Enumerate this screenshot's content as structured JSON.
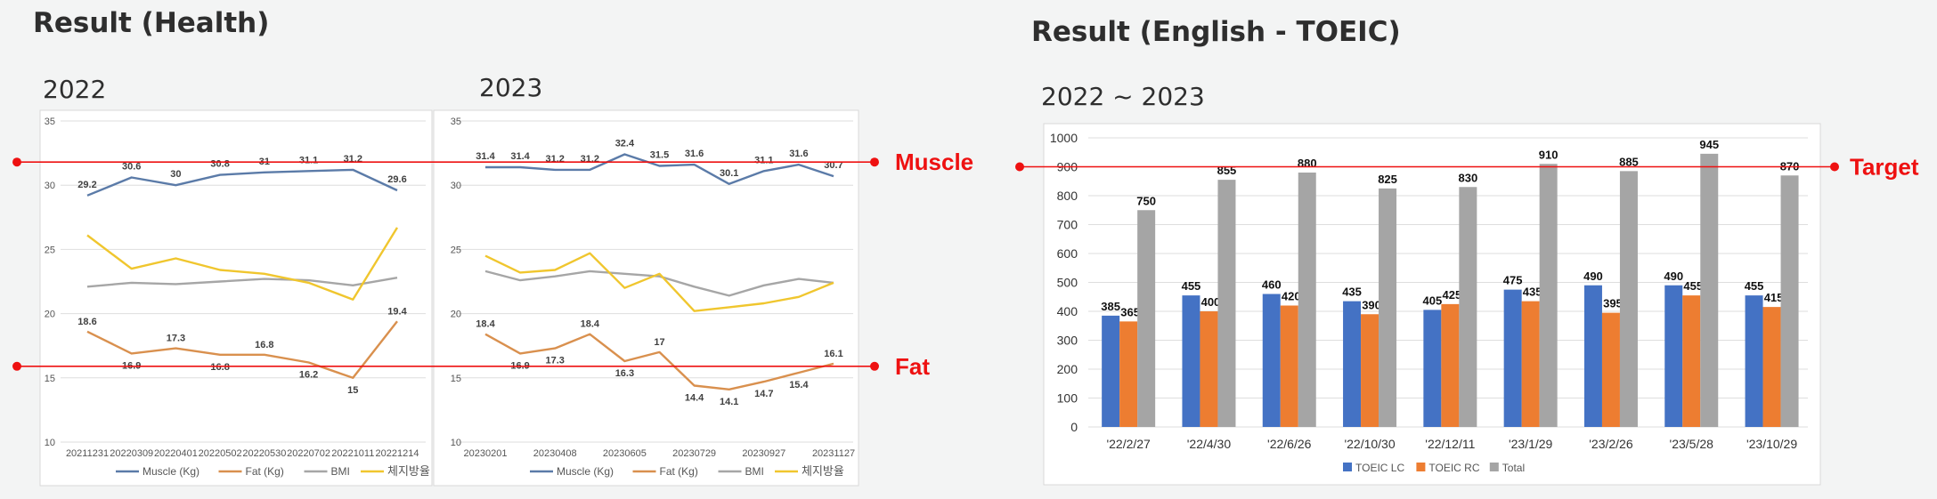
{
  "titles": {
    "health": "Result (Health)",
    "english": "Result (English - TOEIC)",
    "health_2022": "2022",
    "health_2023": "2023",
    "english_range": "2022 ~ 2023"
  },
  "reference_lines": {
    "muscle": "Muscle",
    "fat": "Fat",
    "target": "Target"
  },
  "colors": {
    "muscle": "#5b7ba8",
    "fat": "#d9904e",
    "bmi": "#a6a6a6",
    "body_fat": "#f0c62e",
    "toeic_lc": "#4472c4",
    "toeic_rc": "#ed7d31",
    "total": "#a5a5a5",
    "target_line": "#ee1111"
  },
  "chart_data": [
    {
      "type": "line",
      "title": "2022",
      "ylim": [
        10,
        35
      ],
      "yticks": [
        "10",
        "15",
        "20",
        "25",
        "30",
        "35"
      ],
      "x": [
        "20211231",
        "20220309",
        "20220401",
        "20220502",
        "20220530",
        "20220702",
        "20221011",
        "20221214"
      ],
      "series": [
        {
          "name": "Muscle (Kg)",
          "values": [
            29.2,
            30.6,
            30.0,
            30.8,
            31.0,
            31.1,
            31.2,
            29.6
          ],
          "labels": [
            "29.2",
            "30.6",
            "30",
            "30.8",
            "31",
            "31.1",
            "31.2",
            "29.6"
          ]
        },
        {
          "name": "Fat (Kg)",
          "values": [
            18.6,
            16.9,
            17.3,
            16.8,
            16.8,
            16.2,
            15.0,
            19.4
          ],
          "labels": [
            "18.6",
            "16.9",
            "17.3",
            "16.8",
            "16.8",
            "16.2",
            "15",
            "19.4"
          ]
        },
        {
          "name": "BMI",
          "values": [
            22.1,
            22.4,
            22.3,
            22.5,
            22.7,
            22.6,
            22.2,
            22.8
          ],
          "labels": []
        },
        {
          "name": "체지방율",
          "values": [
            26.1,
            23.5,
            24.3,
            23.4,
            23.1,
            22.4,
            21.1,
            26.7
          ],
          "labels": []
        }
      ],
      "reference": {
        "muscle": 31.8,
        "fat": 15.9
      }
    },
    {
      "type": "line",
      "title": "2023",
      "ylim": [
        10,
        35
      ],
      "yticks": [
        "10",
        "15",
        "20",
        "25",
        "30",
        "35"
      ],
      "x": [
        "20230201",
        "",
        "20230408",
        "",
        "20230605",
        "",
        "20230729",
        "",
        "20230927",
        "",
        "20231127"
      ],
      "series": [
        {
          "name": "Muscle (Kg)",
          "values": [
            31.4,
            31.4,
            31.2,
            31.2,
            32.4,
            31.5,
            31.6,
            30.1,
            31.1,
            31.6,
            30.7
          ],
          "labels": [
            "31.4",
            "31.4",
            "31.2",
            "31.2",
            "32.4",
            "31.5",
            "31.6",
            "30.1",
            "31.1",
            "31.6",
            "30.7"
          ]
        },
        {
          "name": "Fat (Kg)",
          "values": [
            18.4,
            16.9,
            17.3,
            18.4,
            16.3,
            17.0,
            14.4,
            14.1,
            14.7,
            15.4,
            16.1
          ],
          "labels": [
            "18.4",
            "16.9",
            "17.3",
            "18.4",
            "16.3",
            "17",
            "14.4",
            "14.1",
            "14.7",
            "15.4",
            "16.1"
          ]
        },
        {
          "name": "BMI",
          "values": [
            23.3,
            22.6,
            22.9,
            23.3,
            23.1,
            22.9,
            22.1,
            21.4,
            22.2,
            22.7,
            22.4
          ],
          "labels": []
        },
        {
          "name": "체지방율",
          "values": [
            24.5,
            23.2,
            23.4,
            24.7,
            22.0,
            23.1,
            20.2,
            20.5,
            20.8,
            21.3,
            22.4
          ],
          "labels": []
        }
      ],
      "reference": {
        "muscle": 31.8,
        "fat": 15.9
      }
    },
    {
      "type": "bar",
      "title": "2022 ~ 2023",
      "ylim": [
        0,
        1000
      ],
      "yticks": [
        "0",
        "100",
        "200",
        "300",
        "400",
        "500",
        "600",
        "700",
        "800",
        "900",
        "1000"
      ],
      "categories": [
        "'22/2/27",
        "'22/4/30",
        "'22/6/26",
        "'22/10/30",
        "'22/12/11",
        "'23/1/29",
        "'23/2/26",
        "'23/5/28",
        "'23/10/29"
      ],
      "series": [
        {
          "name": "TOEIC LC",
          "values": [
            385,
            455,
            460,
            435,
            405,
            475,
            490,
            490,
            455
          ],
          "labels": [
            "385",
            "455",
            "460",
            "435",
            "405",
            "475",
            "490",
            "490",
            "455"
          ]
        },
        {
          "name": "TOEIC RC",
          "values": [
            365,
            400,
            420,
            390,
            425,
            435,
            395,
            455,
            415
          ],
          "labels": [
            "365",
            "400",
            "420",
            "390",
            "425",
            "435",
            "395",
            "455",
            "415"
          ]
        },
        {
          "name": "Total",
          "values": [
            750,
            855,
            880,
            825,
            830,
            910,
            885,
            945,
            870
          ],
          "labels": [
            "750",
            "855",
            "880",
            "825",
            "830",
            "910",
            "885",
            "945",
            "870"
          ]
        }
      ],
      "reference": {
        "target": 900
      }
    }
  ]
}
